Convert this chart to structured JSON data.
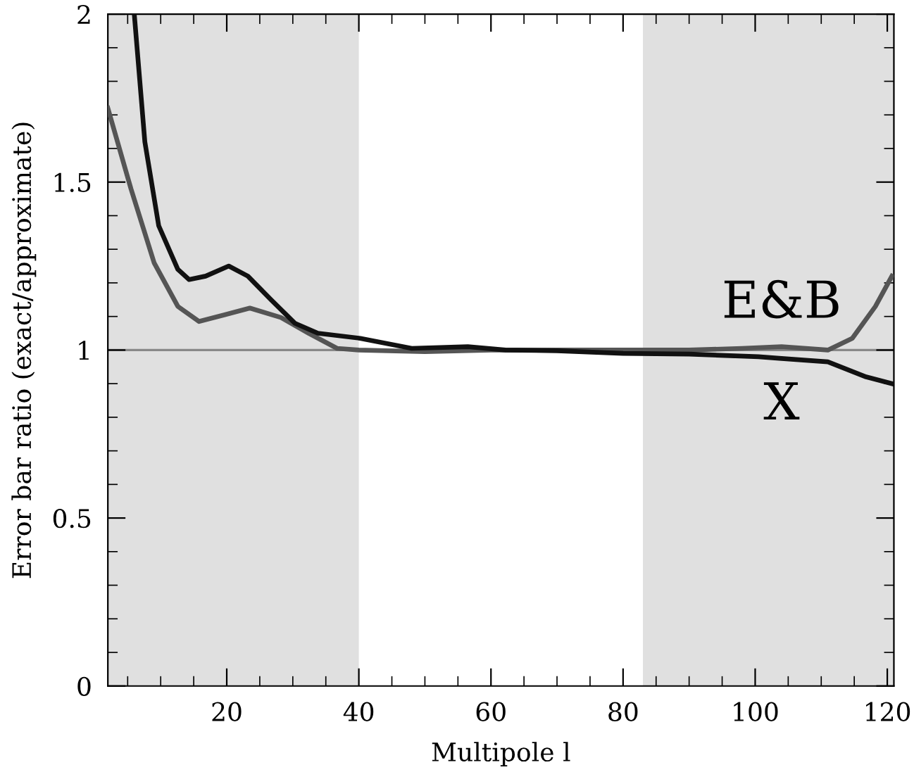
{
  "chart_data": {
    "type": "line",
    "xlabel": "Multipole l",
    "ylabel": "Error bar ratio (exact/approximate)",
    "xlim": [
      2,
      121
    ],
    "ylim": [
      0,
      2
    ],
    "xticks": [
      20,
      40,
      60,
      80,
      100,
      120
    ],
    "yticks": [
      0,
      0.5,
      1,
      1.5,
      2
    ],
    "grid": false,
    "legend": false,
    "line_style": "solid",
    "marker": "none",
    "bands": [
      {
        "axis": "x",
        "from": 2,
        "to": 40,
        "color": "#e0e0e0"
      },
      {
        "axis": "x",
        "from": 83,
        "to": 121,
        "color": "#e0e0e0"
      }
    ],
    "ref_lines": [
      {
        "axis": "y",
        "value": 1,
        "color": "#888888"
      }
    ],
    "series": [
      {
        "name": "E&B",
        "color": "#555555",
        "x": [
          2,
          5.5,
          9,
          12.6,
          15.8,
          19.7,
          23.5,
          28.2,
          32.4,
          36.7,
          40,
          50,
          60,
          70,
          80,
          90,
          98,
          104,
          111,
          114.7,
          118.2,
          120.7
        ],
        "values": [
          1.72,
          1.48,
          1.26,
          1.13,
          1.085,
          1.105,
          1.125,
          1.097,
          1.05,
          1.005,
          1.0,
          0.995,
          1.0,
          1.0,
          1.0,
          1.0,
          1.005,
          1.01,
          1.0,
          1.035,
          1.13,
          1.22
        ]
      },
      {
        "name": "X",
        "color": "#111111",
        "x": [
          6.0,
          7.6,
          9.7,
          12.6,
          14.3,
          16.8,
          20.3,
          23.2,
          26.7,
          30.3,
          33.8,
          40.2,
          48,
          56.5,
          62.2,
          70,
          80,
          90,
          100.5,
          104,
          111,
          116.8,
          120.7
        ],
        "values": [
          2.0,
          1.62,
          1.37,
          1.24,
          1.21,
          1.22,
          1.25,
          1.22,
          1.15,
          1.08,
          1.05,
          1.035,
          1.005,
          1.01,
          1.0,
          0.998,
          0.99,
          0.988,
          0.98,
          0.975,
          0.965,
          0.92,
          0.9
        ]
      }
    ]
  }
}
